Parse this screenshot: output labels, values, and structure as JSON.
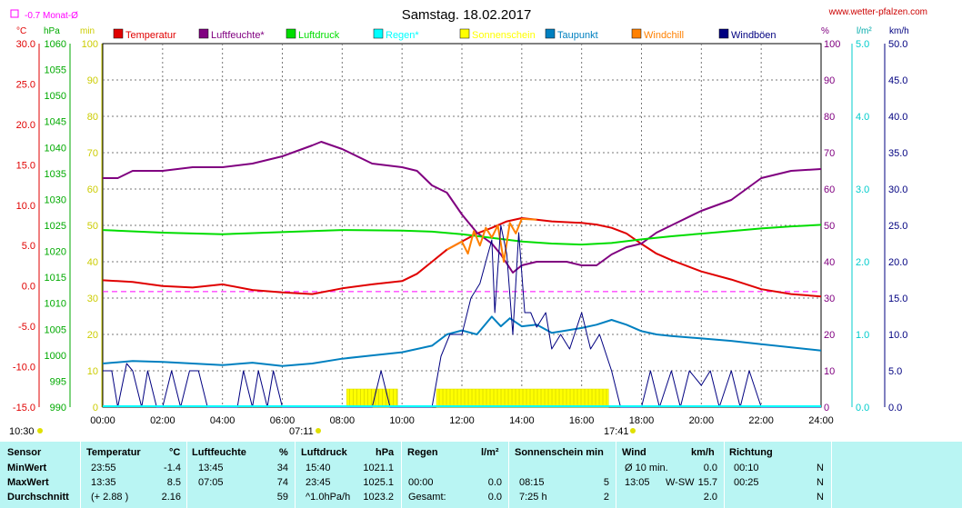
{
  "title": "Samstag. 18.02.2017",
  "website": "www.wetter-pfalzen.com",
  "month_avg_label": "-0.7 Monat-Ø",
  "unit_labels": {
    "temp": "°C",
    "pressure": "hPa",
    "sun": "min",
    "percent": "%",
    "rain": "l/m²",
    "wind": "km/h"
  },
  "legend": [
    {
      "name": "Temperatur",
      "color": "#e00000"
    },
    {
      "name": "Luftfeuchte*",
      "color": "#800080"
    },
    {
      "name": "Luftdruck",
      "color": "#00dd00"
    },
    {
      "name": "Regen*",
      "color": "#00ffff"
    },
    {
      "name": "Sonnenschein",
      "color": "#ffff00"
    },
    {
      "name": "Taupunkt",
      "color": "#0080c0"
    },
    {
      "name": "Windchill",
      "color": "#ff8000"
    },
    {
      "name": "Windböen",
      "color": "#000080"
    }
  ],
  "sunrise_label": "07:11",
  "sunset_label": "17:41",
  "left_corner_label": "10:30",
  "chart_data": {
    "type": "line",
    "title": "Samstag. 18.02.2017",
    "xlim": [
      0,
      24
    ],
    "x_ticks": [
      "00:00",
      "02:00",
      "04:00",
      "06:00",
      "08:00",
      "10:00",
      "12:00",
      "14:00",
      "16:00",
      "18:00",
      "20:00",
      "22:00",
      "24:00"
    ],
    "axes": {
      "temp_c": {
        "range": [
          -15,
          30
        ],
        "ticks": [
          "30.0",
          "25.0",
          "20.0",
          "15.0",
          "10.0",
          "5.0",
          "0.0",
          "-5.0",
          "-10.0",
          "-15.0"
        ]
      },
      "pressure_hpa": {
        "range": [
          990,
          1060
        ],
        "ticks": [
          "1060",
          "1055",
          "1050",
          "1045",
          "1040",
          "1035",
          "1030",
          "1025",
          "1020",
          "1015",
          "1010",
          "1005",
          "1000",
          "995",
          "990"
        ]
      },
      "sun_min": {
        "range": [
          0,
          100
        ],
        "ticks": [
          "100",
          "90",
          "80",
          "70",
          "60",
          "50",
          "40",
          "30",
          "20",
          "10",
          "0"
        ]
      },
      "humidity_pct": {
        "range": [
          0,
          100
        ],
        "ticks": [
          "100",
          "90",
          "80",
          "70",
          "60",
          "50",
          "40",
          "30",
          "20",
          "10",
          "0"
        ]
      },
      "rain_lm2": {
        "range": [
          0,
          5
        ],
        "ticks": [
          "5.0",
          "4.0",
          "3.0",
          "2.0",
          "1.0",
          "0.0"
        ]
      },
      "wind_kmh": {
        "range": [
          0,
          50
        ],
        "ticks": [
          "50.0",
          "45.0",
          "40.0",
          "35.0",
          "30.0",
          "25.0",
          "20.0",
          "15.0",
          "10.0",
          "5.0",
          "0.0"
        ]
      }
    },
    "month_avg_temp": -0.7,
    "series": [
      {
        "name": "Temperatur",
        "axis": "temp_c",
        "color": "#e00000",
        "x": [
          0,
          1,
          2,
          3,
          4,
          5,
          6,
          7,
          8,
          9,
          10,
          10.5,
          11,
          11.5,
          12,
          12.5,
          13,
          13.5,
          14,
          14.5,
          15,
          16,
          16.5,
          17,
          17.5,
          18,
          18.5,
          19,
          20,
          21,
          22,
          23,
          24
        ],
        "y": [
          0.7,
          0.5,
          0.0,
          -0.2,
          0.2,
          -0.5,
          -0.8,
          -1.0,
          -0.3,
          0.2,
          0.6,
          1.5,
          3.0,
          4.5,
          5.5,
          6.5,
          7.2,
          8.0,
          8.4,
          8.2,
          8.0,
          7.8,
          7.6,
          7.2,
          6.5,
          5.2,
          4.0,
          3.2,
          1.8,
          0.8,
          -0.4,
          -1.0,
          -1.3
        ]
      },
      {
        "name": "Luftfeuchte*",
        "axis": "humidity_pct",
        "color": "#800080",
        "x": [
          0,
          0.5,
          1,
          2,
          3,
          4,
          5,
          6,
          7,
          7.3,
          8,
          9,
          10,
          10.5,
          11,
          11.5,
          12,
          12.5,
          13,
          13.3,
          13.7,
          14,
          14.5,
          15,
          15.5,
          16,
          16.5,
          17,
          17.5,
          18,
          18.5,
          19,
          20,
          21,
          22,
          23,
          24
        ],
        "y": [
          63,
          63,
          65,
          65,
          66,
          66,
          67,
          69,
          72,
          73,
          71,
          67,
          66,
          65,
          61,
          59,
          53,
          48,
          45,
          42,
          37,
          39,
          40,
          40,
          40,
          39,
          39,
          42,
          44,
          45,
          48,
          50,
          54,
          57,
          63,
          65,
          65.5
        ]
      },
      {
        "name": "Luftdruck",
        "axis": "pressure_hpa",
        "color": "#00dd00",
        "x": [
          0,
          2,
          4,
          6,
          8,
          10,
          11,
          12,
          13,
          14,
          15,
          16,
          17,
          18,
          19,
          20,
          21,
          22,
          23,
          24
        ],
        "y": [
          1024.1,
          1023.6,
          1023.3,
          1023.7,
          1024.1,
          1024.0,
          1023.8,
          1023.3,
          1022.6,
          1021.9,
          1021.5,
          1021.3,
          1021.6,
          1022.3,
          1022.9,
          1023.4,
          1023.9,
          1024.4,
          1024.8,
          1025.1
        ]
      },
      {
        "name": "Taupunkt",
        "axis": "temp_c",
        "color": "#0080c0",
        "x": [
          0,
          1,
          2,
          3,
          4,
          5,
          6,
          7,
          8,
          9,
          10,
          11,
          11.5,
          12,
          12.5,
          13,
          13.3,
          13.6,
          14,
          14.5,
          15,
          15.5,
          16,
          16.5,
          17,
          17.5,
          18,
          18.5,
          19,
          20,
          21,
          22,
          23,
          24
        ],
        "y": [
          -9.6,
          -9.3,
          -9.4,
          -9.6,
          -9.8,
          -9.5,
          -9.9,
          -9.6,
          -9.0,
          -8.6,
          -8.2,
          -7.4,
          -6.0,
          -5.5,
          -6.0,
          -3.8,
          -5.0,
          -4.0,
          -5.0,
          -4.8,
          -5.8,
          -5.5,
          -5.2,
          -4.8,
          -4.2,
          -4.8,
          -5.6,
          -6.0,
          -6.2,
          -6.5,
          -6.8,
          -7.2,
          -7.6,
          -8.0
        ]
      },
      {
        "name": "Windchill",
        "axis": "temp_c",
        "color": "#ff8000",
        "x": [
          11.5,
          12,
          12.2,
          12.4,
          12.6,
          12.8,
          13.0,
          13.2,
          13.4,
          13.6,
          13.8,
          14,
          14.5
        ],
        "y": [
          4.5,
          5.5,
          4.0,
          6.8,
          5.0,
          7.2,
          6.0,
          7.5,
          3.0,
          7.8,
          6.5,
          8.3,
          8.2
        ]
      },
      {
        "name": "Windböen",
        "axis": "wind_kmh",
        "color": "#000080",
        "x": [
          0,
          0.3,
          0.5,
          0.8,
          1,
          1.3,
          1.5,
          1.8,
          2,
          2.3,
          2.6,
          2.9,
          3.2,
          3.5,
          4,
          4.5,
          4.7,
          5,
          5.2,
          5.5,
          5.7,
          6,
          6.5,
          7,
          8,
          9,
          9.3,
          9.6,
          10,
          10.5,
          11,
          11.3,
          11.6,
          12,
          12.3,
          12.6,
          12.8,
          13,
          13.1,
          13.3,
          13.5,
          13.7,
          13.9,
          14.1,
          14.3,
          14.5,
          14.8,
          15,
          15.3,
          15.6,
          16,
          16.3,
          16.6,
          17,
          17.3,
          17.6,
          18,
          18.3,
          18.6,
          19,
          19.3,
          19.6,
          20,
          20.3,
          20.6,
          21,
          21.3,
          21.6,
          22,
          22.3,
          22.6,
          23,
          24
        ],
        "y": [
          5,
          5,
          0,
          6,
          5,
          0,
          5,
          0,
          0,
          5,
          0,
          5,
          5,
          0,
          0,
          0,
          5,
          0,
          5,
          0,
          5,
          0,
          0,
          0,
          0,
          0,
          5,
          0,
          0,
          0,
          0,
          7,
          10,
          10,
          15,
          17,
          20,
          23,
          13,
          25,
          21,
          10,
          24,
          13,
          13,
          11,
          13,
          8,
          10,
          8,
          13,
          8,
          10,
          5,
          0,
          0,
          0,
          5,
          0,
          5,
          0,
          5,
          3,
          5,
          0,
          5,
          0,
          5,
          0,
          0,
          0,
          0,
          0
        ]
      },
      {
        "name": "Sonnenschein",
        "axis": "sun_min",
        "color": "#ffff00",
        "type": "bar",
        "periods": [
          {
            "start": 8.15,
            "end": 9.85,
            "value": 5
          },
          {
            "start": 11.15,
            "end": 16.9,
            "value": 5
          }
        ]
      }
    ]
  },
  "stats": {
    "headers": [
      {
        "label": "Sensor",
        "unit": ""
      },
      {
        "label": "Temperatur",
        "unit": "°C"
      },
      {
        "label": "Luftfeuchte",
        "unit": "%"
      },
      {
        "label": "Luftdruck",
        "unit": "hPa"
      },
      {
        "label": "Regen",
        "unit": "l/m²"
      },
      {
        "label": "Sonnenschein min",
        "unit": ""
      },
      {
        "label": "Wind",
        "unit": "km/h"
      },
      {
        "label": "Richtung",
        "unit": ""
      }
    ],
    "rows": [
      {
        "label": "MinWert",
        "temp_time": "23:55",
        "temp_val": "-1.4",
        "hum_time": "13:45",
        "hum_val": "34",
        "pres_time": "15:40",
        "pres_val": "1021.1",
        "rain_time": "",
        "rain_val": "",
        "sun_time": "",
        "sun_val": "",
        "wind_time": "Ø 10 min.",
        "wind_dir": "",
        "wind_val": "0.0",
        "dir_time": "00:10",
        "dir_val": "N"
      },
      {
        "label": "MaxWert",
        "temp_time": "13:35",
        "temp_val": "8.5",
        "hum_time": "07:05",
        "hum_val": "74",
        "pres_time": "23:45",
        "pres_val": "1025.1",
        "rain_time": "00:00",
        "rain_val": "0.0",
        "sun_time": "08:15",
        "sun_val": "5",
        "wind_time": "13:05",
        "wind_dir": "W-SW",
        "wind_val": "15.7",
        "dir_time": "00:25",
        "dir_val": "N"
      },
      {
        "label": "Durchschnitt",
        "temp_time": "(+ 2.88 )",
        "temp_val": "2.16",
        "hum_time": "",
        "hum_val": "59",
        "pres_time": "^1.0hPa/h",
        "pres_val": "1023.2",
        "rain_time": "Gesamt:",
        "rain_val": "0.0",
        "sun_time": "7:25 h",
        "sun_val": "2",
        "wind_time": "",
        "wind_dir": "",
        "wind_val": "2.0",
        "dir_time": "",
        "dir_val": "N"
      }
    ]
  }
}
